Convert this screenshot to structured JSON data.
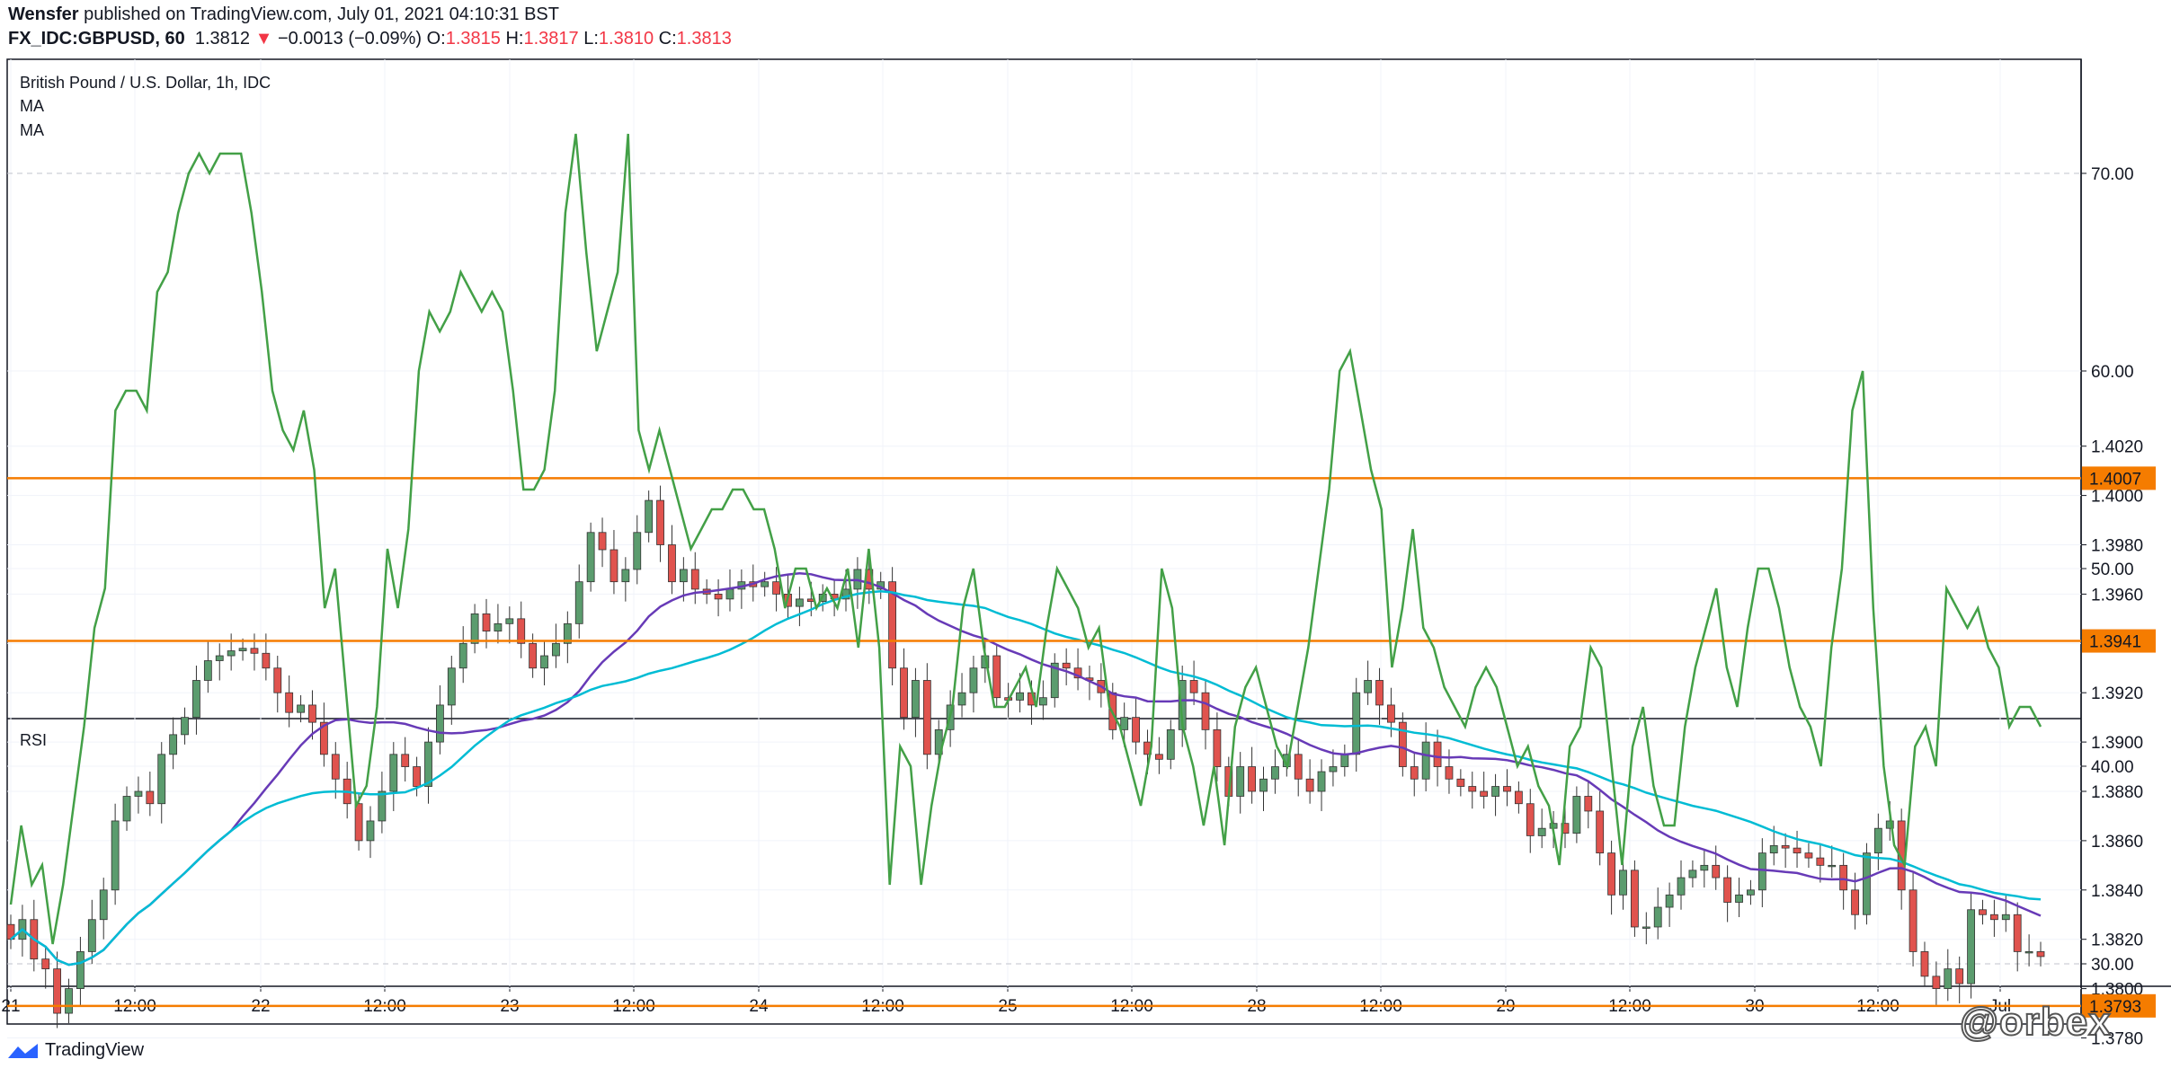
{
  "header": {
    "publisher": "Wensfer",
    "published_text": "published on TradingView.com, July 01, 2021 04:10:31 BST",
    "symbol": "FX_IDC:GBPUSD, 60",
    "last": "1.3812",
    "change": "−0.0013 (−0.09%)",
    "o_label": "O:",
    "o": "1.3815",
    "h_label": "H:",
    "h": "1.3817",
    "l_label": "L:",
    "l": "1.3810",
    "c_label": "C:",
    "c": "1.3813"
  },
  "legend": {
    "title": "British Pound / U.S. Dollar, 1h, IDC",
    "ma1": "MA",
    "ma2": "MA",
    "rsi": "RSI"
  },
  "footer": {
    "brand": "TradingView",
    "watermark": "@orbex"
  },
  "colors": {
    "up": "#5b9c6e",
    "down": "#e0534e",
    "ma_fast": "#673ab7",
    "ma_slow": "#00bcd4",
    "level": "#f57c00",
    "rsi": "#43a047",
    "grid": "#f0f3fa"
  },
  "chart_data": [
    {
      "type": "candlestick",
      "title": "British Pound / U.S. Dollar, 1h, IDC",
      "x_ticks": [
        "21",
        "12:00",
        "22",
        "12:00",
        "23",
        "12:00",
        "24",
        "12:00",
        "25",
        "12:00",
        "28",
        "12:00",
        "29",
        "12:00",
        "30",
        "12:00",
        "Jul"
      ],
      "y_ticks": [
        "1.3780",
        "1.3800",
        "1.3820",
        "1.3840",
        "1.3860",
        "1.3880",
        "1.3900",
        "1.3920",
        "1.3940",
        "1.3960",
        "1.3980",
        "1.4000",
        "1.4020"
      ],
      "ylim": [
        1.3757,
        1.4025
      ],
      "horizontal_levels": [
        "1.4007",
        "1.3941",
        "1.3793"
      ],
      "series_close": [
        1.382,
        1.3828,
        1.3812,
        1.3808,
        1.379,
        1.38,
        1.3815,
        1.3828,
        1.384,
        1.3868,
        1.3878,
        1.388,
        1.3875,
        1.3895,
        1.3903,
        1.391,
        1.3925,
        1.3933,
        1.3935,
        1.3937,
        1.3938,
        1.3936,
        1.393,
        1.392,
        1.3912,
        1.3915,
        1.3908,
        1.3895,
        1.3885,
        1.3875,
        1.386,
        1.3868,
        1.388,
        1.3895,
        1.389,
        1.3882,
        1.39,
        1.3915,
        1.393,
        1.394,
        1.3952,
        1.3945,
        1.3948,
        1.395,
        1.394,
        1.393,
        1.3935,
        1.394,
        1.3948,
        1.3965,
        1.3985,
        1.3978,
        1.3965,
        1.397,
        1.3985,
        1.3998,
        1.398,
        1.3965,
        1.397,
        1.3962,
        1.396,
        1.3958,
        1.3962,
        1.3965,
        1.3963,
        1.3965,
        1.396,
        1.3955,
        1.3958,
        1.3957,
        1.396,
        1.3958,
        1.3962,
        1.397,
        1.3962,
        1.3965,
        1.393,
        1.391,
        1.3925,
        1.3895,
        1.3905,
        1.3915,
        1.392,
        1.393,
        1.3935,
        1.3918,
        1.3917,
        1.392,
        1.3915,
        1.3918,
        1.3932,
        1.393,
        1.3926,
        1.3925,
        1.392,
        1.3905,
        1.391,
        1.39,
        1.3895,
        1.3893,
        1.3905,
        1.3925,
        1.392,
        1.3905,
        1.389,
        1.3878,
        1.389,
        1.388,
        1.3885,
        1.389,
        1.3895,
        1.3885,
        1.388,
        1.3888,
        1.389,
        1.3895,
        1.392,
        1.3925,
        1.3915,
        1.3908,
        1.389,
        1.3885,
        1.39,
        1.389,
        1.3885,
        1.3882,
        1.388,
        1.3878,
        1.3882,
        1.388,
        1.3875,
        1.3862,
        1.3865,
        1.3867,
        1.3863,
        1.3878,
        1.3872,
        1.3855,
        1.3838,
        1.3848,
        1.3825,
        1.3825,
        1.3833,
        1.3838,
        1.3845,
        1.3848,
        1.385,
        1.3845,
        1.3835,
        1.3838,
        1.384,
        1.3855,
        1.3858,
        1.3857,
        1.3855,
        1.3853,
        1.385,
        1.385,
        1.384,
        1.383,
        1.3855,
        1.3865,
        1.3868,
        1.384,
        1.3815,
        1.3805,
        1.38,
        1.3808,
        1.3802,
        1.3832,
        1.383,
        1.3828,
        1.383,
        1.3815,
        1.3815,
        1.3813
      ]
    },
    {
      "type": "line",
      "title": "RSI",
      "y_ticks": [
        "30.00",
        "40.00",
        "50.00",
        "60.00",
        "70.00"
      ],
      "ylim": [
        25,
        75
      ],
      "dashed_levels": [
        30,
        70
      ],
      "values": [
        33,
        37,
        34,
        35,
        31,
        34,
        38,
        42,
        47,
        49,
        58,
        59,
        59,
        58,
        64,
        65,
        68,
        70,
        71,
        70,
        71,
        71,
        71,
        68,
        64,
        59,
        57,
        56,
        58,
        55,
        48,
        50,
        44,
        38,
        39,
        43,
        51,
        48,
        52,
        60,
        63,
        62,
        63,
        65,
        64,
        63,
        64,
        63,
        59,
        54,
        54,
        55,
        59,
        68,
        72,
        66,
        61,
        63,
        65,
        72,
        57,
        55,
        57,
        55,
        53,
        51,
        52,
        53,
        53,
        54,
        54,
        53,
        53,
        51,
        48,
        50,
        50,
        48,
        49,
        48,
        50,
        46,
        51,
        46,
        34,
        41,
        40,
        34,
        38,
        41,
        43,
        48,
        50,
        46,
        43,
        43,
        44,
        45,
        43,
        47,
        50,
        49,
        48,
        46,
        47,
        43,
        42,
        40,
        38,
        41,
        50,
        48,
        42,
        40,
        37,
        40,
        36,
        42,
        44,
        45,
        43,
        41,
        40,
        43,
        46,
        50,
        54,
        60,
        61,
        58,
        55,
        53,
        45,
        48,
        52,
        47,
        46,
        44,
        43,
        42,
        44,
        45,
        44,
        42,
        40,
        41,
        39,
        38,
        35,
        41,
        42,
        46,
        45,
        40,
        35,
        41,
        43,
        39,
        37,
        37,
        42,
        45,
        47,
        49,
        45,
        43,
        47,
        50,
        50,
        48,
        45,
        43,
        42,
        40,
        46,
        50,
        58,
        60,
        48,
        40,
        36,
        35,
        41,
        42,
        40,
        49,
        48,
        47,
        48,
        46,
        45,
        42,
        43,
        43,
        42
      ]
    }
  ]
}
